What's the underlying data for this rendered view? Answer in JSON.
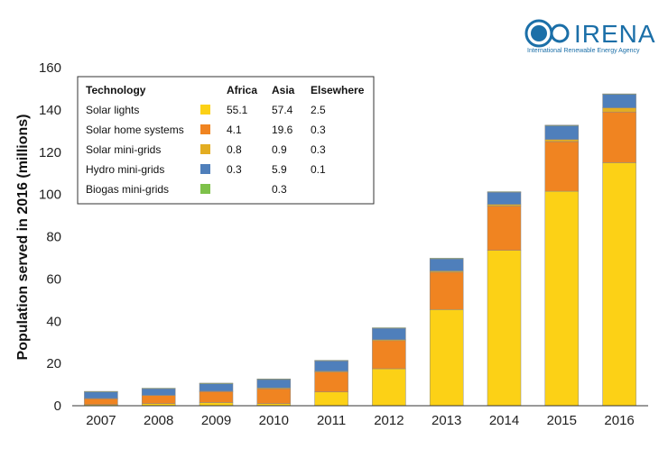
{
  "logo": {
    "name": "IRENA",
    "subtitle": "International Renewable Energy Agency",
    "color": "#1b6fa8"
  },
  "chart_data": {
    "type": "bar",
    "stacked": true,
    "ylabel": "Population served in 2016 (millions)",
    "ylim": [
      0,
      160
    ],
    "yticks": [
      0,
      20,
      40,
      60,
      80,
      100,
      120,
      140,
      160
    ],
    "categories": [
      "2007",
      "2008",
      "2009",
      "2010",
      "2011",
      "2012",
      "2013",
      "2014",
      "2015",
      "2016"
    ],
    "series": [
      {
        "name": "Solar lights",
        "color": "#fcd116",
        "values": [
          0.5,
          1.0,
          1.5,
          1.0,
          6.5,
          17.5,
          45.5,
          73.5,
          101.5,
          115.0
        ]
      },
      {
        "name": "Solar home systems",
        "color": "#f08421",
        "values": [
          2.8,
          3.8,
          5.2,
          7.0,
          9.5,
          13.3,
          17.7,
          21.0,
          23.5,
          24.0
        ]
      },
      {
        "name": "Solar mini-grids",
        "color": "#e3ad22",
        "values": [
          0.2,
          0.2,
          0.2,
          0.4,
          0.4,
          0.5,
          0.6,
          0.8,
          1.0,
          2.0
        ]
      },
      {
        "name": "Hydro mini-grids",
        "color": "#4f7fbb",
        "values": [
          3.0,
          3.0,
          3.5,
          4.0,
          4.8,
          5.3,
          5.7,
          5.7,
          6.5,
          6.3
        ]
      },
      {
        "name": "Biogas mini-grids",
        "color": "#7ec14a",
        "values": [
          0.3,
          0.3,
          0.3,
          0.3,
          0.3,
          0.3,
          0.3,
          0.3,
          0.3,
          0.3
        ]
      }
    ],
    "legend": {
      "position": "top-left",
      "headers": [
        "Technology",
        "Africa",
        "Asia",
        "Elsewhere"
      ],
      "rows": [
        {
          "name": "Solar lights",
          "africa": "55.1",
          "asia": "57.4",
          "elsewhere": "2.5"
        },
        {
          "name": "Solar home systems",
          "africa": "4.1",
          "asia": "19.6",
          "elsewhere": "0.3"
        },
        {
          "name": "Solar mini-grids",
          "africa": "0.8",
          "asia": "0.9",
          "elsewhere": "0.3"
        },
        {
          "name": "Hydro mini-grids",
          "africa": "0.3",
          "asia": "5.9",
          "elsewhere": "0.1"
        },
        {
          "name": "Biogas mini-grids",
          "africa": "",
          "asia": "0.3",
          "elsewhere": ""
        }
      ]
    },
    "grid": false
  }
}
